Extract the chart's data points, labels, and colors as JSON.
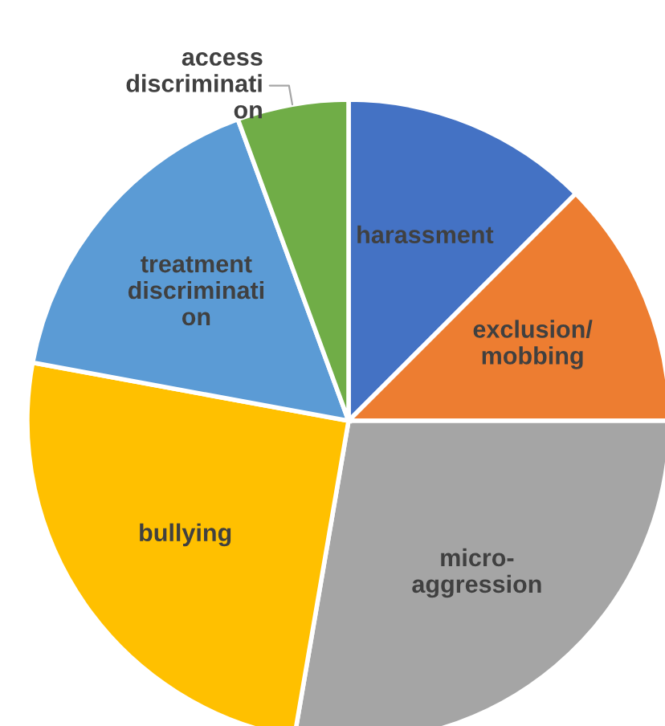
{
  "chart_data": {
    "type": "pie",
    "categories": [
      "harassment",
      "exclusion/\nmobbing",
      "micro-\naggression",
      "bullying",
      "treatment\ndiscriminati\non",
      "access\ndiscriminati\non"
    ],
    "values": [
      12.5,
      12.5,
      27.7,
      25.2,
      16.5,
      5.6
    ],
    "colors": [
      "#4472c4",
      "#ed7d31",
      "#a5a5a5",
      "#ffc000",
      "#5b9bd5",
      "#70ad47"
    ]
  }
}
